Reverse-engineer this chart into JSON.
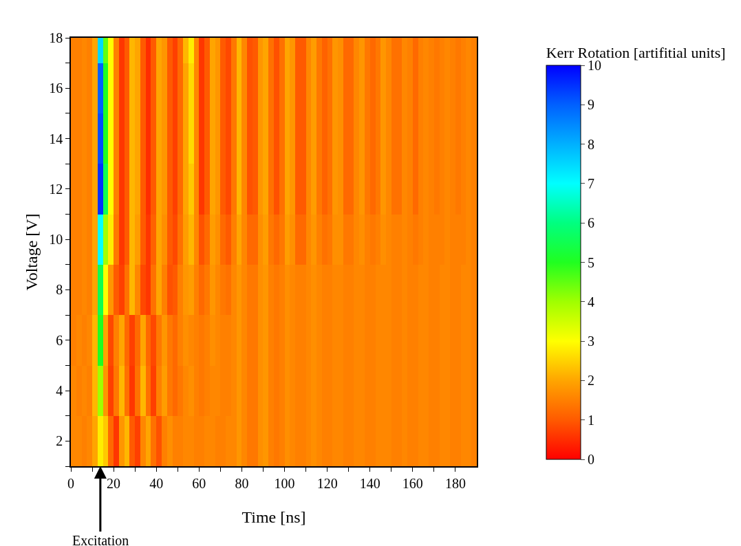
{
  "chart_data": {
    "type": "heatmap",
    "xlabel": "Time [ns]",
    "ylabel": "Voltage [V]",
    "clabel": "Kerr Rotation [artifitial units]",
    "annotations": [
      "Excitation"
    ],
    "x": [
      1.25,
      3.75,
      6.25,
      8.75,
      11.25,
      13.75,
      16.25,
      18.75,
      21.25,
      23.75,
      26.25,
      28.75,
      31.25,
      33.75,
      36.25,
      38.75,
      41.25,
      43.75,
      46.25,
      48.75,
      51.25,
      53.75,
      56.25,
      58.75,
      61.25,
      63.75,
      66.25,
      68.75,
      71.25,
      73.75,
      76.25,
      78.75,
      81.25,
      83.75,
      86.25,
      88.75,
      91.25,
      93.75,
      96.25,
      98.75,
      101.25,
      103.75,
      106.25,
      108.75,
      111.25,
      113.75,
      116.25,
      118.75,
      121.25,
      123.75,
      126.25,
      128.75,
      131.25,
      133.75,
      136.25,
      138.75,
      141.25,
      143.75,
      146.25,
      148.75,
      151.25,
      153.75,
      156.25,
      158.75,
      161.25,
      163.75,
      166.25,
      168.75,
      171.25,
      173.75,
      176.25,
      178.75,
      181.25,
      183.75,
      186.25,
      188.75
    ],
    "y": [
      18,
      16,
      14,
      12,
      10,
      8,
      6,
      4,
      2
    ],
    "cells": [
      [
        1.5,
        1.5,
        1.6,
        1.5,
        2.0,
        7.5,
        4.5,
        3.0,
        1.5,
        0.6,
        1.0,
        2.2,
        2.0,
        1.0,
        0.5,
        1.0,
        2.0,
        1.8,
        1.0,
        0.7,
        1.2,
        2.2,
        2.8,
        1.6,
        0.6,
        1.0,
        2.0,
        1.8,
        1.0,
        0.8,
        1.4,
        2.2,
        1.6,
        0.9,
        1.0,
        1.8,
        2.0,
        1.3,
        0.9,
        1.3,
        2.0,
        1.8,
        1.0,
        1.0,
        1.6,
        1.9,
        1.4,
        1.1,
        1.3,
        1.8,
        1.7,
        1.2,
        1.2,
        1.6,
        1.8,
        1.4,
        1.2,
        1.4,
        1.8,
        1.6,
        1.3,
        1.3,
        1.6,
        1.5,
        1.2,
        1.5,
        1.6,
        1.5,
        1.4,
        1.5,
        1.6,
        1.5,
        1.4,
        1.5,
        1.6,
        1.5
      ],
      [
        1.5,
        1.5,
        1.6,
        1.5,
        2.0,
        9.0,
        5.0,
        3.0,
        1.5,
        0.6,
        1.0,
        2.2,
        2.0,
        1.0,
        0.5,
        1.0,
        2.0,
        1.8,
        1.0,
        0.7,
        1.2,
        2.0,
        2.6,
        1.6,
        0.6,
        1.0,
        2.0,
        1.8,
        1.0,
        0.8,
        1.4,
        2.2,
        1.6,
        0.9,
        1.0,
        1.8,
        2.0,
        1.3,
        0.9,
        1.3,
        2.0,
        1.8,
        1.0,
        1.0,
        1.6,
        1.9,
        1.4,
        1.1,
        1.3,
        1.8,
        1.7,
        1.2,
        1.2,
        1.6,
        1.8,
        1.4,
        1.2,
        1.4,
        1.8,
        1.6,
        1.3,
        1.3,
        1.6,
        1.5,
        1.2,
        1.5,
        1.6,
        1.5,
        1.4,
        1.5,
        1.6,
        1.5,
        1.4,
        1.5,
        1.6,
        1.5
      ],
      [
        1.5,
        1.5,
        1.6,
        1.5,
        2.0,
        9.2,
        5.0,
        3.0,
        1.5,
        0.6,
        1.0,
        2.2,
        2.0,
        1.0,
        0.5,
        1.0,
        2.0,
        1.8,
        1.0,
        0.7,
        1.2,
        2.0,
        2.6,
        1.6,
        0.6,
        1.0,
        2.0,
        1.8,
        1.0,
        0.8,
        1.4,
        2.2,
        1.6,
        0.9,
        1.0,
        1.8,
        2.0,
        1.3,
        0.9,
        1.3,
        2.0,
        1.8,
        1.0,
        1.0,
        1.6,
        1.9,
        1.4,
        1.1,
        1.3,
        1.8,
        1.7,
        1.2,
        1.2,
        1.6,
        1.8,
        1.4,
        1.2,
        1.4,
        1.8,
        1.6,
        1.3,
        1.3,
        1.6,
        1.5,
        1.2,
        1.5,
        1.6,
        1.5,
        1.4,
        1.5,
        1.6,
        1.5,
        1.4,
        1.5,
        1.6,
        1.5
      ],
      [
        1.5,
        1.5,
        1.6,
        1.5,
        2.0,
        9.5,
        5.5,
        3.0,
        1.5,
        0.6,
        1.0,
        2.2,
        2.0,
        1.0,
        0.5,
        1.0,
        2.0,
        1.8,
        1.0,
        0.7,
        1.2,
        2.0,
        2.4,
        1.6,
        0.6,
        1.0,
        2.0,
        1.8,
        1.0,
        0.8,
        1.4,
        2.2,
        1.6,
        0.9,
        1.0,
        1.8,
        2.0,
        1.3,
        0.9,
        1.3,
        2.0,
        1.8,
        1.0,
        1.0,
        1.6,
        1.9,
        1.4,
        1.1,
        1.3,
        1.8,
        1.7,
        1.2,
        1.2,
        1.6,
        1.8,
        1.4,
        1.2,
        1.4,
        1.8,
        1.6,
        1.3,
        1.3,
        1.6,
        1.5,
        1.2,
        1.5,
        1.6,
        1.5,
        1.4,
        1.5,
        1.6,
        1.5,
        1.4,
        1.5,
        1.6,
        1.5
      ],
      [
        1.5,
        1.5,
        1.6,
        1.5,
        2.0,
        7.0,
        4.0,
        2.8,
        1.4,
        0.6,
        1.0,
        2.2,
        1.9,
        1.0,
        0.6,
        1.1,
        2.0,
        1.7,
        1.0,
        0.8,
        1.3,
        1.9,
        2.2,
        1.6,
        0.9,
        1.2,
        1.9,
        1.7,
        1.2,
        1.0,
        1.5,
        2.0,
        1.6,
        1.2,
        1.2,
        1.7,
        1.9,
        1.4,
        1.2,
        1.4,
        1.9,
        1.7,
        1.2,
        1.2,
        1.6,
        1.8,
        1.5,
        1.3,
        1.4,
        1.7,
        1.7,
        1.4,
        1.4,
        1.6,
        1.7,
        1.5,
        1.4,
        1.5,
        1.7,
        1.6,
        1.5,
        1.5,
        1.6,
        1.5,
        1.4,
        1.5,
        1.6,
        1.5,
        1.5,
        1.5,
        1.6,
        1.5,
        1.5,
        1.5,
        1.6,
        1.5
      ],
      [
        1.5,
        1.5,
        1.6,
        1.5,
        2.0,
        5.5,
        3.0,
        1.8,
        1.0,
        0.7,
        1.3,
        2.2,
        1.6,
        0.8,
        0.6,
        1.3,
        2.0,
        1.5,
        0.9,
        1.0,
        1.5,
        1.8,
        1.9,
        1.5,
        1.2,
        1.4,
        1.8,
        1.6,
        1.4,
        1.3,
        1.6,
        1.8,
        1.6,
        1.4,
        1.4,
        1.7,
        1.8,
        1.5,
        1.4,
        1.5,
        1.7,
        1.6,
        1.5,
        1.5,
        1.6,
        1.7,
        1.6,
        1.5,
        1.5,
        1.6,
        1.6,
        1.5,
        1.5,
        1.6,
        1.6,
        1.5,
        1.5,
        1.6,
        1.6,
        1.6,
        1.5,
        1.5,
        1.6,
        1.5,
        1.5,
        1.6,
        1.6,
        1.5,
        1.5,
        1.6,
        1.6,
        1.5,
        1.5,
        1.6,
        1.6,
        1.5
      ],
      [
        1.5,
        1.6,
        1.5,
        1.6,
        2.2,
        5.0,
        2.0,
        0.8,
        1.5,
        2.0,
        1.2,
        0.7,
        1.2,
        2.0,
        1.2,
        0.8,
        1.4,
        1.8,
        1.4,
        1.2,
        1.5,
        1.7,
        1.6,
        1.5,
        1.4,
        1.5,
        1.7,
        1.6,
        1.5,
        1.5,
        1.6,
        1.8,
        1.6,
        1.4,
        1.4,
        1.7,
        1.8,
        1.5,
        1.4,
        1.5,
        1.7,
        1.6,
        1.5,
        1.5,
        1.6,
        1.7,
        1.6,
        1.5,
        1.5,
        1.6,
        1.6,
        1.5,
        1.5,
        1.6,
        1.6,
        1.5,
        1.5,
        1.6,
        1.6,
        1.6,
        1.5,
        1.5,
        1.6,
        1.5,
        1.5,
        1.6,
        1.6,
        1.5,
        1.5,
        1.6,
        1.6,
        1.5,
        1.5,
        1.6,
        1.6,
        1.5
      ],
      [
        1.6,
        1.5,
        1.6,
        1.5,
        2.2,
        4.0,
        1.8,
        0.7,
        1.4,
        2.2,
        1.3,
        0.6,
        1.3,
        2.2,
        1.3,
        0.7,
        1.5,
        1.9,
        1.4,
        1.2,
        1.4,
        1.6,
        1.7,
        1.5,
        1.4,
        1.5,
        1.6,
        1.6,
        1.5,
        1.5,
        1.6,
        1.8,
        1.6,
        1.4,
        1.4,
        1.7,
        1.8,
        1.5,
        1.4,
        1.5,
        1.7,
        1.6,
        1.5,
        1.5,
        1.6,
        1.7,
        1.6,
        1.5,
        1.5,
        1.6,
        1.6,
        1.5,
        1.5,
        1.6,
        1.6,
        1.5,
        1.5,
        1.6,
        1.6,
        1.6,
        1.5,
        1.5,
        1.6,
        1.5,
        1.5,
        1.6,
        1.6,
        1.5,
        1.5,
        1.6,
        1.6,
        1.5,
        1.5,
        1.6,
        1.6,
        1.5
      ],
      [
        1.6,
        1.6,
        1.5,
        1.6,
        2.0,
        2.8,
        2.4,
        1.2,
        0.6,
        1.8,
        2.2,
        1.0,
        0.7,
        1.6,
        2.0,
        1.3,
        0.9,
        1.5,
        1.7,
        1.5,
        1.5,
        1.6,
        1.6,
        1.5,
        1.5,
        1.6,
        1.6,
        1.5,
        1.5,
        1.6,
        1.6,
        1.8,
        1.6,
        1.4,
        1.4,
        1.7,
        1.8,
        1.5,
        1.4,
        1.5,
        1.7,
        1.6,
        1.5,
        1.5,
        1.6,
        1.7,
        1.6,
        1.5,
        1.5,
        1.6,
        1.6,
        1.5,
        1.5,
        1.6,
        1.6,
        1.5,
        1.5,
        1.6,
        1.6,
        1.6,
        1.5,
        1.5,
        1.6,
        1.5,
        1.5,
        1.6,
        1.6,
        1.5,
        1.5,
        1.6,
        1.6,
        1.5,
        1.5,
        1.6,
        1.6,
        1.5
      ]
    ],
    "colors": [
      "#ff0000",
      "#ff5a00",
      "#ffa500",
      "#ffff00",
      "#a0ff00",
      "#20ff20",
      "#00ff80",
      "#00ffff",
      "#00b0ff",
      "#0060ff",
      "#0000ff"
    ],
    "clim": [
      0,
      10
    ],
    "cticks": [
      0,
      1,
      2,
      3,
      4,
      5,
      6,
      7,
      8,
      9,
      10
    ],
    "xlim": [
      0,
      190
    ],
    "xticks": [
      0,
      {
        "value": 10,
        "label": null
      },
      20,
      {
        "value": 30,
        "label": null
      },
      40,
      {
        "value": 50,
        "label": null
      },
      60,
      {
        "value": 70,
        "label": null
      },
      80,
      {
        "value": 90,
        "label": null
      },
      100,
      {
        "value": 110,
        "label": null
      },
      120,
      {
        "value": 130,
        "label": null
      },
      140,
      {
        "value": 150,
        "label": null
      },
      160,
      {
        "value": 170,
        "label": null
      },
      180
    ],
    "ylim": [
      1,
      18
    ],
    "yticks": [
      {
        "value": 1,
        "label": null
      },
      2,
      {
        "value": 3,
        "label": null
      },
      4,
      {
        "value": 5,
        "label": null
      },
      6,
      {
        "value": 7,
        "label": null
      },
      8,
      {
        "value": 9,
        "label": null
      },
      10,
      {
        "value": 11,
        "label": null
      },
      12,
      {
        "value": 13,
        "label": null
      },
      14,
      {
        "value": 15,
        "label": null
      },
      16,
      {
        "value": 17,
        "label": null
      },
      18
    ]
  }
}
